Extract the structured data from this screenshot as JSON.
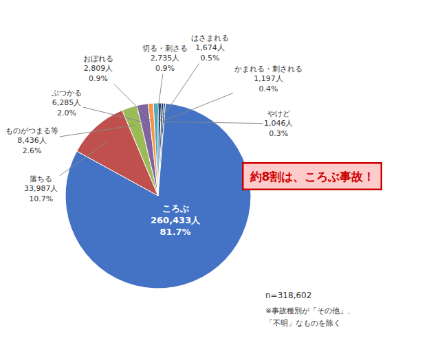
{
  "chart_data": {
    "type": "pie",
    "categories": [
      "切る・刺さる",
      "はさまれる",
      "かまれる・刺される",
      "やけど",
      "ころぶ",
      "落ちる",
      "ものがつまる等",
      "ぶつかる",
      "おぼれる"
    ],
    "values": [
      2735,
      1674,
      1197,
      1046,
      260433,
      33987,
      8436,
      6285,
      2809
    ],
    "value_labels": [
      "2,735人",
      "1,674人",
      "1,197人",
      "1,046人",
      "260,433人",
      "33,987人",
      "8,436人",
      "6,285人",
      "2,809人"
    ],
    "percent_labels": [
      "0.9%",
      "0.5%",
      "0.4%",
      "0.3%",
      "81.7%",
      "10.7%",
      "2.6%",
      "2.0%",
      "0.9%"
    ],
    "colors": [
      "#4BACC6",
      "#1F497D",
      "#17375E",
      "#243F60",
      "#4472C4",
      "#C0504D",
      "#9BBB59",
      "#8064A2",
      "#F79646"
    ],
    "annotations": [
      {
        "text": "約8割は、ころぶ事故！",
        "color": "#CC0000",
        "background": "#FFCCCC"
      }
    ],
    "footnote": [
      "n=318,602",
      "※事故種別が「その他」、",
      "「不明」なものを除く"
    ],
    "legend": false
  }
}
